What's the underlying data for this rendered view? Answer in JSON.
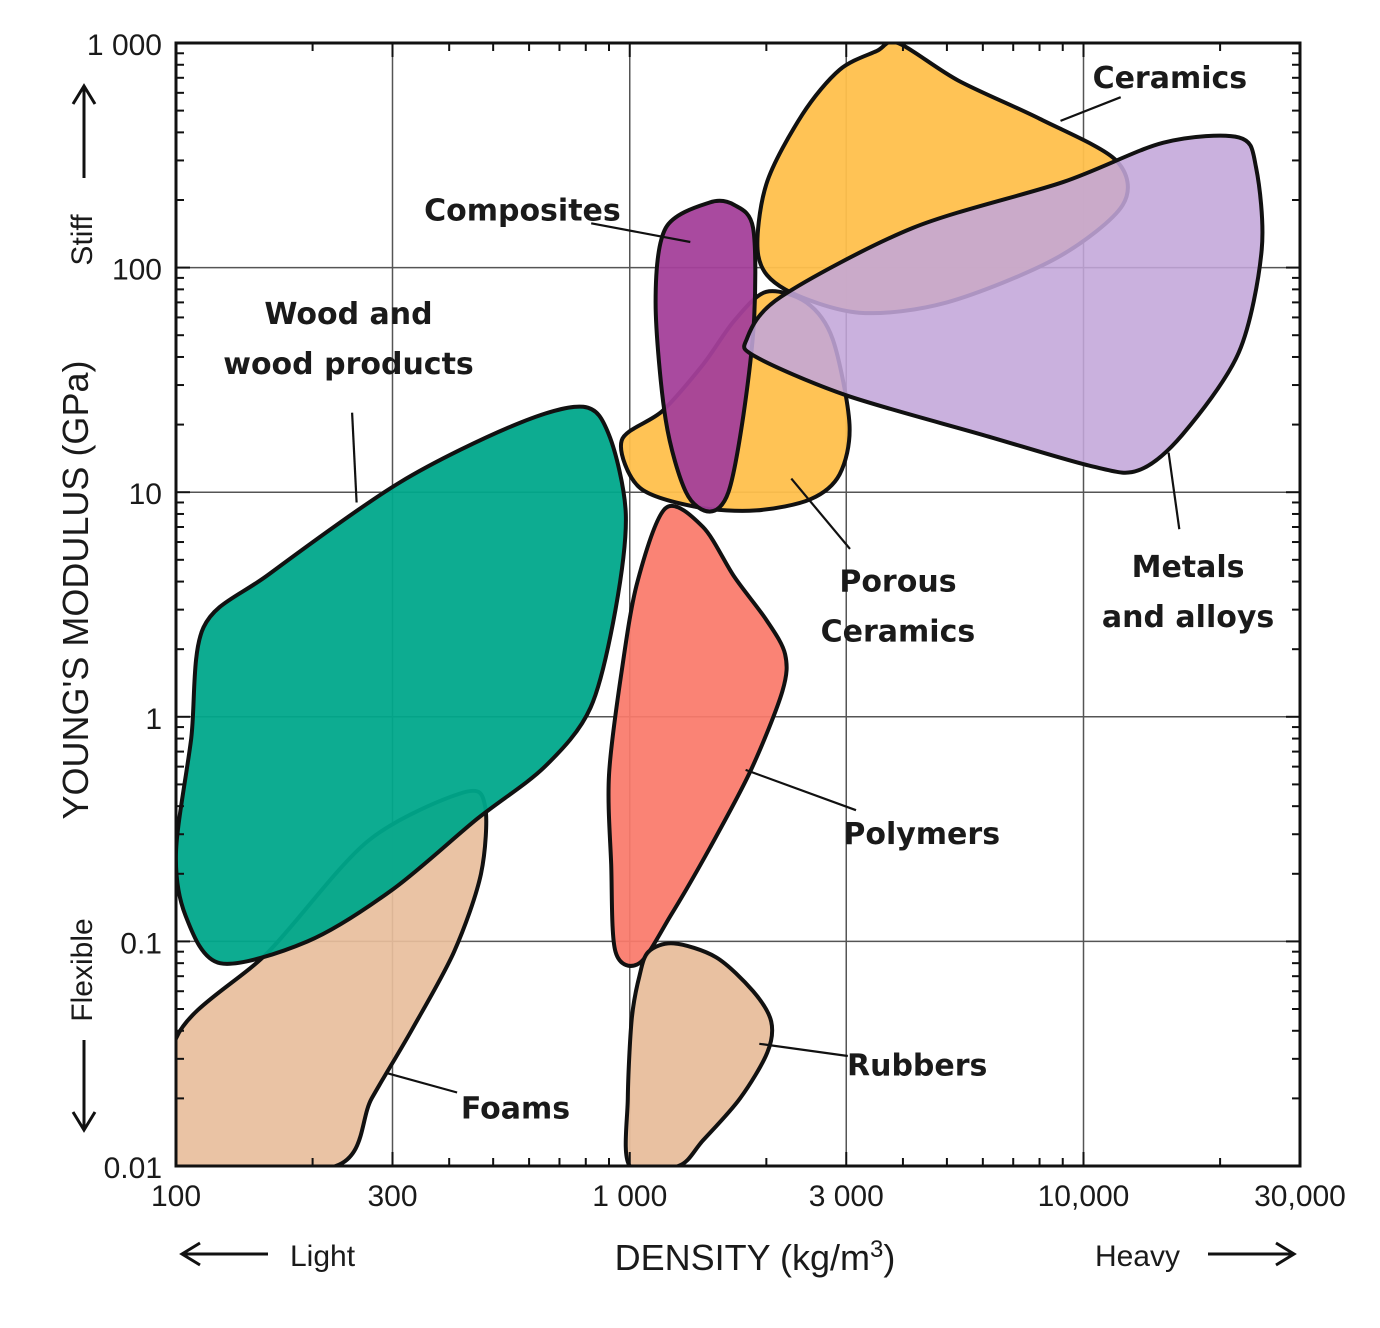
{
  "chart_data": {
    "type": "area",
    "xlabel_main": "DENSITY (kg/m",
    "xlabel_sup": "3",
    "xlabel_end": ")",
    "ylabel": "YOUNG'S MODULUS (GPa)",
    "x_scale": "log",
    "y_scale": "log",
    "xlim": [
      100,
      30000
    ],
    "ylim": [
      0.01,
      1000
    ],
    "grid": true,
    "x_ticks": [
      {
        "value": 100,
        "label": "100"
      },
      {
        "value": 300,
        "label": "300"
      },
      {
        "value": 1000,
        "label": "1 000"
      },
      {
        "value": 3000,
        "label": "3 000"
      },
      {
        "value": 10000,
        "label": "10,000"
      },
      {
        "value": 30000,
        "label": "30,000"
      }
    ],
    "y_ticks": [
      {
        "value": 0.01,
        "label": "0.01"
      },
      {
        "value": 0.1,
        "label": "0.1"
      },
      {
        "value": 1,
        "label": "1"
      },
      {
        "value": 10,
        "label": "10"
      },
      {
        "value": 100,
        "label": "100"
      },
      {
        "value": 1000,
        "label": "1 000"
      }
    ],
    "direction_labels": {
      "left": "Light",
      "right": "Heavy",
      "up": "Stiff",
      "down": "Flexible"
    },
    "regions": [
      {
        "id": "foams",
        "name": "Foams",
        "color": "#E8BE9C",
        "opacity": 0.92,
        "label_pos": {
          "x": 560,
          "y": 0.018
        },
        "leader_to": {
          "x": 290,
          "y": 0.026
        },
        "outline": [
          [
            100,
            0.037
          ],
          [
            160,
            0.09
          ],
          [
            265,
            0.28
          ],
          [
            430,
            0.46
          ],
          [
            480,
            0.4
          ],
          [
            470,
            0.2
          ],
          [
            410,
            0.09
          ],
          [
            330,
            0.04
          ],
          [
            270,
            0.02
          ],
          [
            225,
            0.01
          ],
          [
            100,
            0.01
          ]
        ]
      },
      {
        "id": "wood",
        "name": "Wood and wood products",
        "label_lines": [
          "Wood and",
          "wood products"
        ],
        "color": "#00A88B",
        "opacity": 0.95,
        "label_pos": {
          "x": 240,
          "y": 48
        },
        "leader_to": {
          "x": 250,
          "y": 9
        },
        "outline": [
          [
            115,
            2.5
          ],
          [
            160,
            4.3
          ],
          [
            310,
            11
          ],
          [
            560,
            20
          ],
          [
            790,
            24
          ],
          [
            900,
            18
          ],
          [
            980,
            8
          ],
          [
            930,
            3
          ],
          [
            820,
            1.1
          ],
          [
            650,
            0.6
          ],
          [
            460,
            0.35
          ],
          [
            300,
            0.17
          ],
          [
            195,
            0.1
          ],
          [
            125,
            0.08
          ],
          [
            105,
            0.13
          ],
          [
            100,
            0.25
          ],
          [
            108,
            0.8
          ]
        ]
      },
      {
        "id": "polymers",
        "name": "Polymers",
        "color": "#FA7A6A",
        "opacity": 0.93,
        "label_pos": {
          "x": 4400,
          "y": 0.3
        },
        "leader_to": {
          "x": 1800,
          "y": 0.58
        },
        "outline": [
          [
            1200,
            8.5
          ],
          [
            1450,
            7
          ],
          [
            1700,
            4.2
          ],
          [
            2000,
            2.7
          ],
          [
            2200,
            1.9
          ],
          [
            2170,
            1.3
          ],
          [
            1850,
            0.58
          ],
          [
            1500,
            0.26
          ],
          [
            1230,
            0.13
          ],
          [
            1050,
            0.08
          ],
          [
            930,
            0.09
          ],
          [
            910,
            0.22
          ],
          [
            900,
            0.55
          ],
          [
            960,
            1.6
          ],
          [
            1040,
            4
          ]
        ]
      },
      {
        "id": "rubbers",
        "name": "Rubbers",
        "color": "#E8BE9C",
        "opacity": 0.95,
        "label_pos": {
          "x": 4300,
          "y": 0.028
        },
        "leader_to": {
          "x": 1930,
          "y": 0.035
        },
        "outline": [
          [
            1100,
            0.09
          ],
          [
            1250,
            0.098
          ],
          [
            1550,
            0.085
          ],
          [
            1870,
            0.06
          ],
          [
            2050,
            0.044
          ],
          [
            2010,
            0.032
          ],
          [
            1750,
            0.02
          ],
          [
            1450,
            0.013
          ],
          [
            1280,
            0.01
          ],
          [
            1000,
            0.01
          ],
          [
            990,
            0.02
          ],
          [
            1010,
            0.045
          ],
          [
            1050,
            0.07
          ]
        ]
      },
      {
        "id": "ceramics",
        "name": "Ceramics",
        "color": "#FFC04C",
        "opacity": 0.95,
        "label_pos": {
          "x": 15500,
          "y": 700
        },
        "leader_to": {
          "x": 8900,
          "y": 450
        },
        "outline": [
          [
            3500,
            920
          ],
          [
            3900,
            1000
          ],
          [
            5300,
            680
          ],
          [
            8000,
            460
          ],
          [
            11800,
            300
          ],
          [
            12200,
            190
          ],
          [
            8700,
            110
          ],
          [
            5000,
            70
          ],
          [
            3200,
            63
          ],
          [
            2200,
            80
          ],
          [
            1920,
            113
          ],
          [
            2000,
            235
          ],
          [
            2400,
            480
          ],
          [
            2900,
            760
          ]
        ]
      },
      {
        "id": "porous-ceramics",
        "name": "Porous Ceramics",
        "label_lines": [
          "Porous",
          "Ceramics"
        ],
        "color": "#FFC04C",
        "opacity": 0.95,
        "label_pos": {
          "x": 3900,
          "y": 3.1
        },
        "leader_to": {
          "x": 2270,
          "y": 11.5
        },
        "outline": [
          [
            2000,
            78
          ],
          [
            2450,
            70
          ],
          [
            2800,
            48
          ],
          [
            3050,
            20
          ],
          [
            2900,
            12
          ],
          [
            2500,
            9.3
          ],
          [
            1900,
            8.3
          ],
          [
            1400,
            8.6
          ],
          [
            1050,
            10.5
          ],
          [
            960,
            17
          ],
          [
            1180,
            23
          ],
          [
            1450,
            37
          ],
          [
            1700,
            58
          ]
        ]
      },
      {
        "id": "composites",
        "name": "Composites",
        "color": "#A4409A",
        "opacity": 0.95,
        "label_pos": {
          "x": 580,
          "y": 180
        },
        "leader_to": {
          "x": 1360,
          "y": 130
        },
        "outline": [
          [
            1500,
            195
          ],
          [
            1700,
            190
          ],
          [
            1870,
            150
          ],
          [
            1880,
            60
          ],
          [
            1780,
            22
          ],
          [
            1650,
            10
          ],
          [
            1500,
            8.2
          ],
          [
            1330,
            10
          ],
          [
            1200,
            21
          ],
          [
            1140,
            70
          ],
          [
            1200,
            150
          ]
        ]
      },
      {
        "id": "metals",
        "name": "Metals and alloys",
        "label_lines": [
          "Metals",
          "and alloys"
        ],
        "color": "#C3A6D9",
        "opacity": 0.88,
        "label_pos": {
          "x": 17000,
          "y": 3.6
        },
        "leader_to": {
          "x": 15400,
          "y": 15
        },
        "outline": [
          [
            22000,
            380
          ],
          [
            24000,
            280
          ],
          [
            24700,
            120
          ],
          [
            22000,
            42
          ],
          [
            16500,
            18
          ],
          [
            13200,
            12.5
          ],
          [
            10500,
            13
          ],
          [
            6000,
            18
          ],
          [
            3000,
            27
          ],
          [
            1900,
            40
          ],
          [
            1810,
            48
          ],
          [
            2150,
            74
          ],
          [
            4200,
            150
          ],
          [
            9000,
            240
          ],
          [
            15000,
            360
          ]
        ]
      }
    ]
  }
}
